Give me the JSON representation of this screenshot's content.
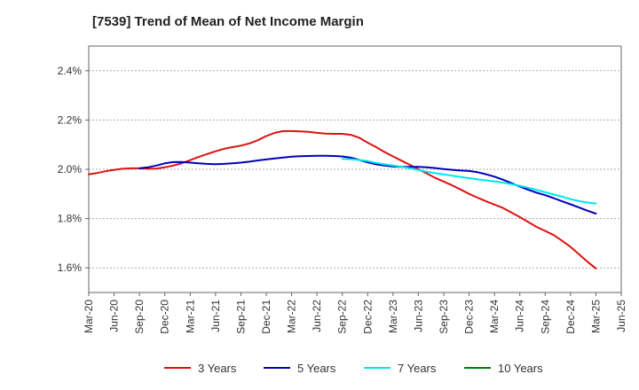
{
  "chart_data": {
    "type": "line",
    "title": "[7539]  Trend of Mean of Net Income Margin",
    "xlabel": "",
    "ylabel": "",
    "x_ticks": [
      "Mar-20",
      "Jun-20",
      "Sep-20",
      "Dec-20",
      "Mar-21",
      "Jun-21",
      "Sep-21",
      "Dec-21",
      "Mar-22",
      "Jun-22",
      "Sep-22",
      "Dec-22",
      "Mar-23",
      "Jun-23",
      "Sep-23",
      "Dec-23",
      "Mar-24",
      "Jun-24",
      "Sep-24",
      "Dec-24",
      "Mar-25",
      "Jun-25"
    ],
    "y_ticks": [
      "1.6%",
      "1.8%",
      "2.0%",
      "2.2%",
      "2.4%"
    ],
    "y_tick_values": [
      1.6,
      1.8,
      2.0,
      2.2,
      2.4
    ],
    "ylim": [
      1.5,
      2.5
    ],
    "grid": true,
    "legend_position": "bottom",
    "series": [
      {
        "name": "3 Years",
        "color": "#dd1111",
        "x": [
          "Mar-20",
          "Apr-20",
          "May-20",
          "Jun-20",
          "Jul-20",
          "Aug-20",
          "Sep-20",
          "Oct-20",
          "Nov-20",
          "Dec-20",
          "Jan-21",
          "Feb-21",
          "Mar-21",
          "Apr-21",
          "May-21",
          "Jun-21",
          "Jul-21",
          "Aug-21",
          "Sep-21",
          "Oct-21",
          "Nov-21",
          "Dec-21",
          "Jan-22",
          "Feb-22",
          "Mar-22",
          "Apr-22",
          "May-22",
          "Jun-22",
          "Jul-22",
          "Aug-22",
          "Sep-22",
          "Oct-22",
          "Nov-22",
          "Dec-22",
          "Jan-23",
          "Feb-23",
          "Mar-23",
          "Apr-23",
          "May-23",
          "Jun-23",
          "Jul-23",
          "Aug-23",
          "Sep-23",
          "Oct-23",
          "Nov-23",
          "Dec-23",
          "Jan-24",
          "Feb-24",
          "Mar-24",
          "Apr-24",
          "May-24",
          "Jun-24",
          "Jul-24",
          "Aug-24",
          "Sep-24",
          "Oct-24",
          "Nov-24",
          "Dec-24",
          "Jan-25",
          "Feb-25",
          "Mar-25"
        ],
        "values": [
          1.98,
          1.985,
          1.992,
          1.998,
          2.002,
          2.004,
          2.004,
          2.002,
          2.003,
          2.008,
          2.015,
          2.025,
          2.037,
          2.05,
          2.062,
          2.073,
          2.083,
          2.09,
          2.096,
          2.105,
          2.118,
          2.135,
          2.148,
          2.155,
          2.155,
          2.154,
          2.152,
          2.148,
          2.145,
          2.144,
          2.144,
          2.14,
          2.128,
          2.108,
          2.09,
          2.07,
          2.052,
          2.035,
          2.018,
          2.0,
          1.983,
          1.965,
          1.95,
          1.935,
          1.918,
          1.9,
          1.885,
          1.87,
          1.857,
          1.843,
          1.825,
          1.806,
          1.786,
          1.766,
          1.75,
          1.733,
          1.71,
          1.685,
          1.655,
          1.625,
          1.598
        ]
      },
      {
        "name": "5 Years",
        "color": "#0000bb",
        "x": [
          "Sep-20",
          "Oct-20",
          "Nov-20",
          "Dec-20",
          "Jan-21",
          "Feb-21",
          "Mar-21",
          "Apr-21",
          "May-21",
          "Jun-21",
          "Jul-21",
          "Aug-21",
          "Sep-21",
          "Oct-21",
          "Nov-21",
          "Dec-21",
          "Jan-22",
          "Feb-22",
          "Mar-22",
          "Apr-22",
          "May-22",
          "Jun-22",
          "Jul-22",
          "Aug-22",
          "Sep-22",
          "Oct-22",
          "Nov-22",
          "Dec-22",
          "Jan-23",
          "Feb-23",
          "Mar-23",
          "Apr-23",
          "May-23",
          "Jun-23",
          "Jul-23",
          "Aug-23",
          "Sep-23",
          "Oct-23",
          "Nov-23",
          "Dec-23",
          "Jan-24",
          "Feb-24",
          "Mar-24",
          "Apr-24",
          "May-24",
          "Jun-24",
          "Jul-24",
          "Aug-24",
          "Sep-24",
          "Oct-24",
          "Nov-24",
          "Dec-24",
          "Jan-25",
          "Feb-25",
          "Mar-25"
        ],
        "values": [
          2.004,
          2.008,
          2.015,
          2.024,
          2.029,
          2.03,
          2.027,
          2.024,
          2.022,
          2.021,
          2.022,
          2.024,
          2.027,
          2.031,
          2.036,
          2.04,
          2.044,
          2.048,
          2.051,
          2.053,
          2.054,
          2.055,
          2.055,
          2.054,
          2.052,
          2.047,
          2.038,
          2.028,
          2.02,
          2.015,
          2.011,
          2.01,
          2.01,
          2.01,
          2.008,
          2.005,
          2.001,
          1.998,
          1.995,
          1.993,
          1.988,
          1.98,
          1.97,
          1.958,
          1.944,
          1.93,
          1.917,
          1.905,
          1.895,
          1.883,
          1.87,
          1.858,
          1.845,
          1.832,
          1.82
        ]
      },
      {
        "name": "7 Years",
        "color": "#00e5ee",
        "x": [
          "Sep-22",
          "Oct-22",
          "Nov-22",
          "Dec-22",
          "Jan-23",
          "Feb-23",
          "Mar-23",
          "Apr-23",
          "May-23",
          "Jun-23",
          "Jul-23",
          "Aug-23",
          "Sep-23",
          "Oct-23",
          "Nov-23",
          "Dec-23",
          "Jan-24",
          "Feb-24",
          "Mar-24",
          "Apr-24",
          "May-24",
          "Jun-24",
          "Jul-24",
          "Aug-24",
          "Sep-24",
          "Oct-24",
          "Nov-24",
          "Dec-24",
          "Jan-25",
          "Feb-25",
          "Mar-25"
        ],
        "values": [
          2.042,
          2.041,
          2.038,
          2.033,
          2.026,
          2.02,
          2.015,
          2.01,
          2.004,
          1.997,
          1.99,
          1.984,
          1.979,
          1.974,
          1.969,
          1.964,
          1.959,
          1.955,
          1.951,
          1.946,
          1.94,
          1.933,
          1.925,
          1.916,
          1.907,
          1.898,
          1.889,
          1.879,
          1.871,
          1.865,
          1.861
        ]
      },
      {
        "name": "10 Years",
        "color": "#008000",
        "x": [],
        "values": []
      }
    ]
  }
}
